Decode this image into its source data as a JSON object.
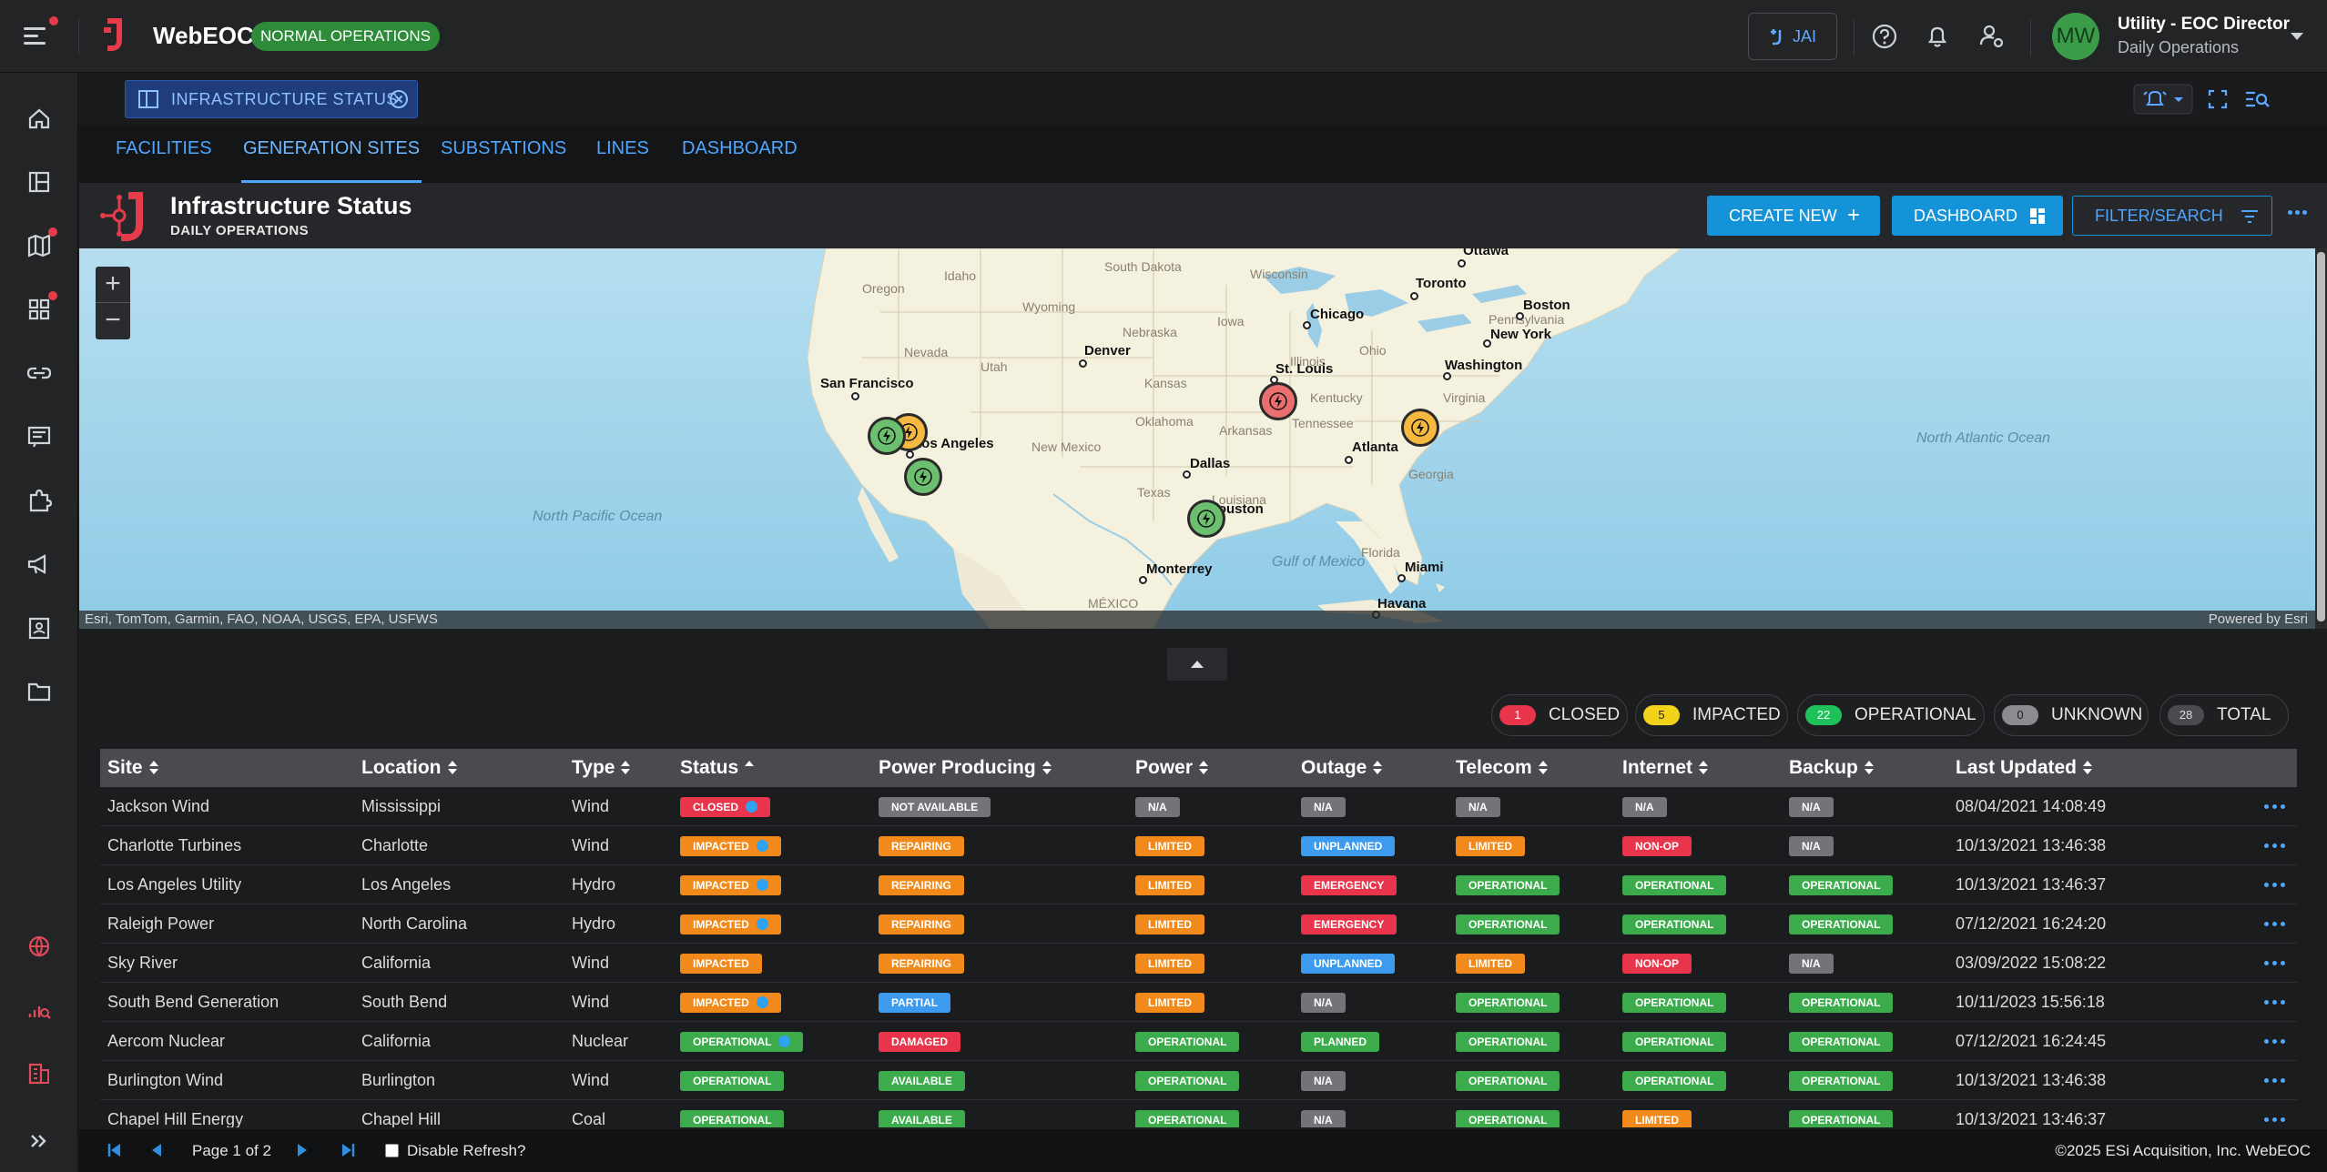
{
  "app": {
    "title": "WebEOC",
    "mode_badge": "NORMAL OPERATIONS",
    "jai_label": "JAI",
    "user": {
      "initials": "MW",
      "name": "Utility - EOC Director",
      "role": "Daily Operations"
    }
  },
  "workspace_tab": {
    "label": "INFRASTRUCTURE STATUS"
  },
  "board_tabs": [
    {
      "label": "FACILITIES",
      "active": false
    },
    {
      "label": "GENERATION SITES",
      "active": true
    },
    {
      "label": "SUBSTATIONS",
      "active": false
    },
    {
      "label": "LINES",
      "active": false
    },
    {
      "label": "DASHBOARD",
      "active": false
    }
  ],
  "board": {
    "title": "Infrastructure Status",
    "subtitle": "DAILY OPERATIONS",
    "create_label": "CREATE NEW",
    "dashboard_label": "DASHBOARD",
    "filter_label": "FILTER/SEARCH"
  },
  "map": {
    "attribution": "Esri, TomTom, Garmin, FAO, NOAA, USGS, EPA, USFWS",
    "powered_by": "Powered by Esri",
    "cities": [
      "Ottawa",
      "Toronto",
      "Boston",
      "New York",
      "Chicago",
      "Washington",
      "Denver",
      "St. Louis",
      "San Francisco",
      "Los Angeles",
      "Atlanta",
      "Dallas",
      "Houston",
      "Monterrey",
      "Miami",
      "Havana"
    ],
    "regions": [
      "Oregon",
      "Idaho",
      "Wyoming",
      "South Dakota",
      "Nebraska",
      "Iowa",
      "Wisconsin",
      "Nevada",
      "Utah",
      "Kansas",
      "Illinois",
      "Ohio",
      "Kentucky",
      "Tennessee",
      "Virginia",
      "Arkansas",
      "Oklahoma",
      "New Mexico",
      "Texas",
      "Louisiana",
      "Georgia",
      "Florida",
      "Pennsylvania",
      "MÉXICO",
      "Gulf of Mexico",
      "North Pacific Ocean",
      "North Atlantic Ocean"
    ],
    "marker_colors": {
      "operational": "#6cbf6f",
      "impacted": "#f5b942",
      "closed": "#ea6f6f"
    }
  },
  "summary": [
    {
      "count": "1",
      "label": "CLOSED",
      "color": "#e9354b",
      "text_color": "#ffffff"
    },
    {
      "count": "5",
      "label": "IMPACTED",
      "color": "#f2d21b",
      "text_color": "#222222"
    },
    {
      "count": "22",
      "label": "OPERATIONAL",
      "color": "#1fc25a",
      "text_color": "#ffffff"
    },
    {
      "count": "0",
      "label": "UNKNOWN",
      "color": "#8a8c90",
      "text_color": "#222222"
    },
    {
      "count": "28",
      "label": "TOTAL",
      "color": "#4a4b50",
      "text_color": "#dddddd"
    }
  ],
  "table": {
    "columns": [
      "Site",
      "Location",
      "Type",
      "Status",
      "Power Producing",
      "Power",
      "Outage",
      "Telecom",
      "Internet",
      "Backup",
      "Last Updated"
    ],
    "rows": [
      {
        "site": "Jackson Wind",
        "location": "Mississippi",
        "type": "Wind",
        "status": "CLOSED",
        "producing": "NOT AVAILABLE",
        "power": "N/A",
        "outage": "N/A",
        "telecom": "N/A",
        "internet": "N/A",
        "backup": "N/A",
        "updated": "08/04/2021 14:08:49"
      },
      {
        "site": "Charlotte Turbines",
        "location": "Charlotte",
        "type": "Wind",
        "status": "IMPACTED",
        "producing": "REPAIRING",
        "power": "LIMITED",
        "outage": "UNPLANNED",
        "telecom": "LIMITED",
        "internet": "NON-OP",
        "backup": "N/A",
        "updated": "10/13/2021 13:46:38"
      },
      {
        "site": "Los Angeles Utility",
        "location": "Los Angeles",
        "type": "Hydro",
        "status": "IMPACTED",
        "producing": "REPAIRING",
        "power": "LIMITED",
        "outage": "EMERGENCY",
        "telecom": "OPERATIONAL",
        "internet": "OPERATIONAL",
        "backup": "OPERATIONAL",
        "updated": "10/13/2021 13:46:37"
      },
      {
        "site": "Raleigh Power",
        "location": "North Carolina",
        "type": "Hydro",
        "status": "IMPACTED",
        "producing": "REPAIRING",
        "power": "LIMITED",
        "outage": "EMERGENCY",
        "telecom": "OPERATIONAL",
        "internet": "OPERATIONAL",
        "backup": "OPERATIONAL",
        "updated": "07/12/2021 16:24:20"
      },
      {
        "site": "Sky River",
        "location": "California",
        "type": "Wind",
        "status": "IMPACTED",
        "producing": "REPAIRING",
        "power": "LIMITED",
        "outage": "UNPLANNED",
        "telecom": "LIMITED",
        "internet": "NON-OP",
        "backup": "N/A",
        "updated": "03/09/2022 15:08:22"
      },
      {
        "site": "South Bend Generation",
        "location": "South Bend",
        "type": "Wind",
        "status": "IMPACTED",
        "producing": "PARTIAL",
        "power": "LIMITED",
        "outage": "N/A",
        "telecom": "OPERATIONAL",
        "internet": "OPERATIONAL",
        "backup": "OPERATIONAL",
        "updated": "10/11/2023 15:56:18"
      },
      {
        "site": "Aercom Nuclear",
        "location": "California",
        "type": "Nuclear",
        "status": "OPERATIONAL",
        "producing": "DAMAGED",
        "power": "OPERATIONAL",
        "outage": "PLANNED",
        "telecom": "OPERATIONAL",
        "internet": "OPERATIONAL",
        "backup": "OPERATIONAL",
        "updated": "07/12/2021 16:24:45"
      },
      {
        "site": "Burlington Wind",
        "location": "Burlington",
        "type": "Wind",
        "status": "OPERATIONAL",
        "producing": "AVAILABLE",
        "power": "OPERATIONAL",
        "outage": "N/A",
        "telecom": "OPERATIONAL",
        "internet": "OPERATIONAL",
        "backup": "OPERATIONAL",
        "updated": "10/13/2021 13:46:38"
      },
      {
        "site": "Chapel Hill Energy",
        "location": "Chapel Hill",
        "type": "Coal",
        "status": "OPERATIONAL",
        "producing": "AVAILABLE",
        "power": "OPERATIONAL",
        "outage": "N/A",
        "telecom": "OPERATIONAL",
        "internet": "LIMITED",
        "backup": "OPERATIONAL",
        "updated": "10/13/2021 13:46:37"
      }
    ]
  },
  "pager": {
    "page_text": "Page 1 of 2",
    "refresh_label": "Disable Refresh?",
    "copyright": "©2025 ESi Acquisition, Inc. WebEOC"
  }
}
